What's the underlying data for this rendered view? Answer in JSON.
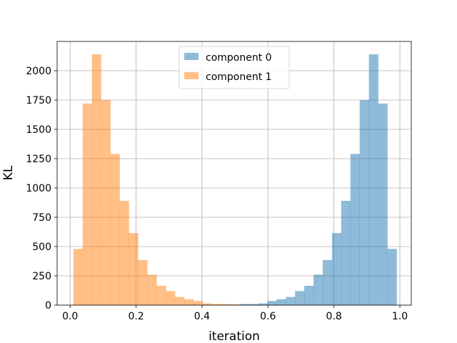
{
  "chart_data": {
    "type": "histogram",
    "title": "",
    "xlabel": "iteration",
    "ylabel": "KL",
    "xlim": [
      -0.0394,
      1.0345
    ],
    "ylim": [
      0,
      2250
    ],
    "xticks": [
      0.0,
      0.2,
      0.4,
      0.6,
      0.8,
      1.0
    ],
    "xtick_labels": [
      "0.0",
      "0.2",
      "0.4",
      "0.6",
      "0.8",
      "1.0"
    ],
    "yticks": [
      0,
      250,
      500,
      750,
      1000,
      1250,
      1500,
      1750,
      2000
    ],
    "ytick_labels": [
      "0",
      "250",
      "500",
      "750",
      "1000",
      "1250",
      "1500",
      "1750",
      "2000"
    ],
    "grid": true,
    "legend_position": "upper-center",
    "bins": {
      "start": 0.01,
      "width": 0.028,
      "count": 35
    },
    "series": [
      {
        "name": "component 0",
        "color": "#1f77b4",
        "alpha": 0.5,
        "values": [
          0,
          0,
          0,
          0,
          0,
          0,
          0,
          0,
          0,
          0,
          0,
          0,
          0,
          0,
          0,
          0,
          0,
          5,
          10,
          10,
          15,
          35,
          50,
          70,
          120,
          165,
          260,
          385,
          615,
          890,
          1290,
          1750,
          2140,
          1720,
          480
        ]
      },
      {
        "name": "component 1",
        "color": "#ff7f0e",
        "alpha": 0.5,
        "values": [
          480,
          1720,
          2140,
          1750,
          1290,
          890,
          615,
          385,
          260,
          165,
          120,
          70,
          50,
          35,
          15,
          10,
          10,
          5,
          0,
          0,
          0,
          0,
          0,
          0,
          0,
          0,
          0,
          0,
          0,
          0,
          0,
          0,
          0,
          0,
          0
        ]
      }
    ]
  }
}
